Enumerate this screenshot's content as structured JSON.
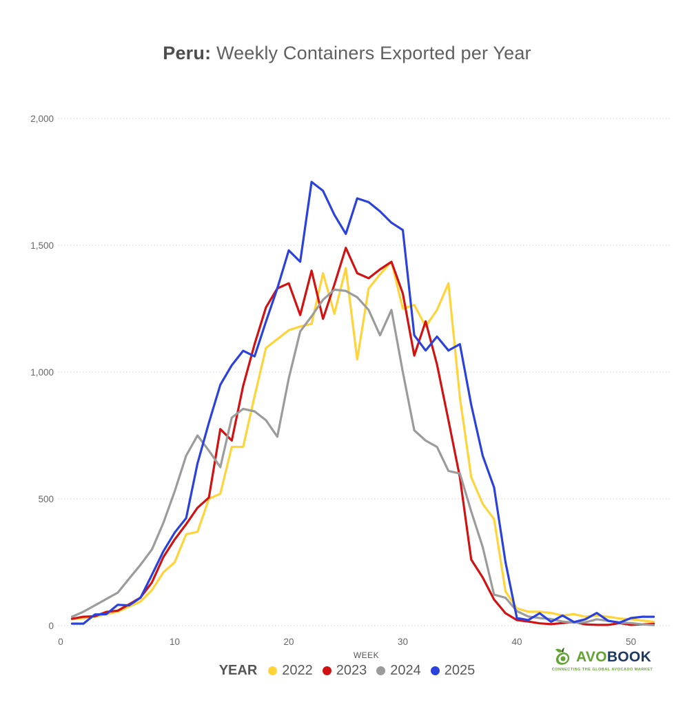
{
  "title": {
    "prefix": "Peru:",
    "rest": "Weekly Containers Exported per Year"
  },
  "axes": {
    "x_label": "WEEK",
    "x_ticks": [
      {
        "value": 0,
        "label": "0"
      },
      {
        "value": 10,
        "label": "10"
      },
      {
        "value": 20,
        "label": "20"
      },
      {
        "value": 30,
        "label": "30"
      },
      {
        "value": 40,
        "label": "40"
      },
      {
        "value": 50,
        "label": "50"
      }
    ],
    "y_ticks": [
      {
        "value": 0,
        "label": "0"
      },
      {
        "value": 500,
        "label": "500"
      },
      {
        "value": 1000,
        "label": "1,000"
      },
      {
        "value": 1500,
        "label": "1,500"
      },
      {
        "value": 2000,
        "label": "2,000"
      }
    ]
  },
  "legend": {
    "title": "YEAR",
    "items": [
      {
        "label": "2022",
        "color": "#FFD43B"
      },
      {
        "label": "2023",
        "color": "#D01212"
      },
      {
        "label": "2024",
        "color": "#9B9B9B"
      },
      {
        "label": "2025",
        "color": "#2B41DC"
      }
    ]
  },
  "logo": {
    "name_primary": "AVOBOOK",
    "name_avo": "AVO",
    "name_book": "BOOK",
    "tagline": "CONNECTING THE GLOBAL AVOCADO MARKET",
    "icon_green": "#62a331",
    "icon_dark": "#2e5d1c"
  },
  "chart_data": {
    "type": "line",
    "title": "Peru: Weekly Containers Exported per Year",
    "xlabel": "WEEK",
    "ylabel": "",
    "xlim": [
      0,
      53
    ],
    "ylim": [
      0,
      2000
    ],
    "grid": "horizontal-dotted",
    "grid_color": "#dcdcdc",
    "legend_position": "bottom",
    "weeks": [
      1,
      2,
      3,
      4,
      5,
      6,
      7,
      8,
      9,
      10,
      11,
      12,
      13,
      14,
      15,
      16,
      17,
      18,
      19,
      20,
      21,
      22,
      23,
      24,
      25,
      26,
      27,
      28,
      29,
      30,
      31,
      32,
      33,
      34,
      35,
      36,
      37,
      38,
      39,
      40,
      41,
      42,
      43,
      44,
      45,
      46,
      47,
      48,
      49,
      50,
      51,
      52
    ],
    "series": [
      {
        "name": "2022",
        "color": "#FFD43B",
        "values": [
          25,
          30,
          35,
          45,
          55,
          75,
          95,
          140,
          210,
          250,
          360,
          370,
          500,
          520,
          705,
          705,
          905,
          1095,
          1130,
          1165,
          1180,
          1190,
          1390,
          1230,
          1410,
          1050,
          1330,
          1385,
          1435,
          1250,
          1265,
          1180,
          1245,
          1350,
          900,
          585,
          480,
          420,
          135,
          68,
          55,
          55,
          50,
          40,
          45,
          35,
          40,
          35,
          28,
          25,
          20,
          15
        ]
      },
      {
        "name": "2023",
        "color": "#D01212",
        "values": [
          27,
          35,
          37,
          54,
          59,
          84,
          111,
          170,
          270,
          340,
          400,
          465,
          505,
          775,
          730,
          945,
          1110,
          1255,
          1330,
          1350,
          1225,
          1400,
          1210,
          1345,
          1490,
          1390,
          1370,
          1405,
          1435,
          1310,
          1065,
          1200,
          1030,
          810,
          585,
          260,
          190,
          103,
          49,
          22,
          16,
          9,
          6,
          10,
          15,
          5,
          3,
          3,
          10,
          3,
          5,
          7
        ]
      },
      {
        "name": "2024",
        "color": "#9B9B9B",
        "values": [
          35,
          55,
          80,
          105,
          130,
          185,
          240,
          300,
          405,
          530,
          670,
          750,
          690,
          625,
          820,
          855,
          845,
          810,
          745,
          975,
          1160,
          1220,
          1285,
          1325,
          1320,
          1295,
          1245,
          1145,
          1245,
          1000,
          770,
          730,
          705,
          610,
          600,
          450,
          310,
          122,
          110,
          57,
          36,
          30,
          26,
          16,
          12,
          13,
          25,
          19,
          12,
          10,
          5,
          2
        ]
      },
      {
        "name": "2025",
        "color": "#2B41DC",
        "values": [
          8,
          8,
          44,
          45,
          82,
          80,
          110,
          200,
          293,
          367,
          424,
          640,
          800,
          950,
          1027,
          1084,
          1062,
          1199,
          1330,
          1480,
          1435,
          1750,
          1715,
          1620,
          1545,
          1685,
          1670,
          1634,
          1589,
          1560,
          1145,
          1085,
          1140,
          1085,
          1110,
          870,
          670,
          545,
          250,
          30,
          22,
          49,
          15,
          40,
          14,
          25,
          50,
          19,
          12,
          30,
          35,
          35
        ]
      }
    ]
  }
}
